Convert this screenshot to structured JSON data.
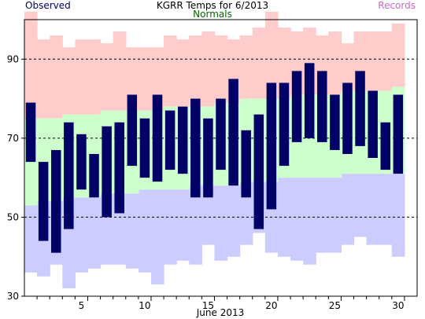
{
  "chart_data": {
    "type": "bar",
    "title": "KGRR Temps for 6/2013",
    "xlabel": "June 2013",
    "ylabel": "",
    "ylim": [
      30,
      100
    ],
    "xlim": [
      0,
      31
    ],
    "y_ticks": [
      30,
      50,
      70,
      90
    ],
    "x_ticks": [
      5,
      10,
      15,
      20,
      25,
      30
    ],
    "grid": "dashed horizontal at 50, 70, 90",
    "legend": [
      "Observed",
      "Normals",
      "Records"
    ],
    "colors": {
      "observed": "#000066",
      "normals_label": "#006600",
      "normals_fill": "#ccffcc",
      "records_label": "#cc66cc",
      "record_high_fill": "#ffcccc",
      "record_low_fill": "#ccccff"
    },
    "days": [
      1,
      2,
      3,
      4,
      5,
      6,
      7,
      8,
      9,
      10,
      11,
      12,
      13,
      14,
      15,
      16,
      17,
      18,
      19,
      20,
      21,
      22,
      23,
      24,
      25,
      26,
      27,
      28,
      29,
      30
    ],
    "observed_high": [
      79,
      64,
      67,
      74,
      71,
      66,
      73,
      74,
      81,
      75,
      81,
      77,
      78,
      80,
      75,
      80,
      85,
      72,
      76,
      84,
      84,
      87,
      89,
      87,
      81,
      84,
      87,
      82,
      74,
      81
    ],
    "observed_low": [
      64,
      44,
      41,
      47,
      57,
      55,
      50,
      51,
      63,
      60,
      59,
      62,
      61,
      55,
      55,
      62,
      58,
      55,
      47,
      52,
      63,
      69,
      70,
      69,
      67,
      66,
      68,
      65,
      62,
      61
    ],
    "normal_high": [
      75,
      75,
      75,
      76,
      76,
      76,
      77,
      77,
      77,
      77,
      77,
      78,
      78,
      78,
      78,
      79,
      79,
      80,
      80,
      80,
      80,
      81,
      81,
      81,
      81,
      82,
      82,
      82,
      82,
      83
    ],
    "normal_low": [
      53,
      54,
      54,
      55,
      55,
      55,
      56,
      56,
      56,
      57,
      57,
      57,
      57,
      58,
      58,
      58,
      58,
      59,
      59,
      59,
      60,
      60,
      60,
      60,
      60,
      61,
      61,
      61,
      61,
      61
    ],
    "record_high": [
      102,
      95,
      96,
      93,
      95,
      95,
      94,
      97,
      93,
      93,
      93,
      96,
      95,
      96,
      97,
      96,
      95,
      96,
      98,
      102,
      98,
      97,
      98,
      96,
      97,
      94,
      97,
      97,
      97,
      99
    ],
    "record_low": [
      36,
      35,
      38,
      32,
      36,
      37,
      38,
      38,
      37,
      36,
      33,
      38,
      39,
      38,
      43,
      39,
      40,
      43,
      46,
      41,
      40,
      39,
      38,
      41,
      41,
      43,
      45,
      43,
      43,
      40
    ]
  }
}
